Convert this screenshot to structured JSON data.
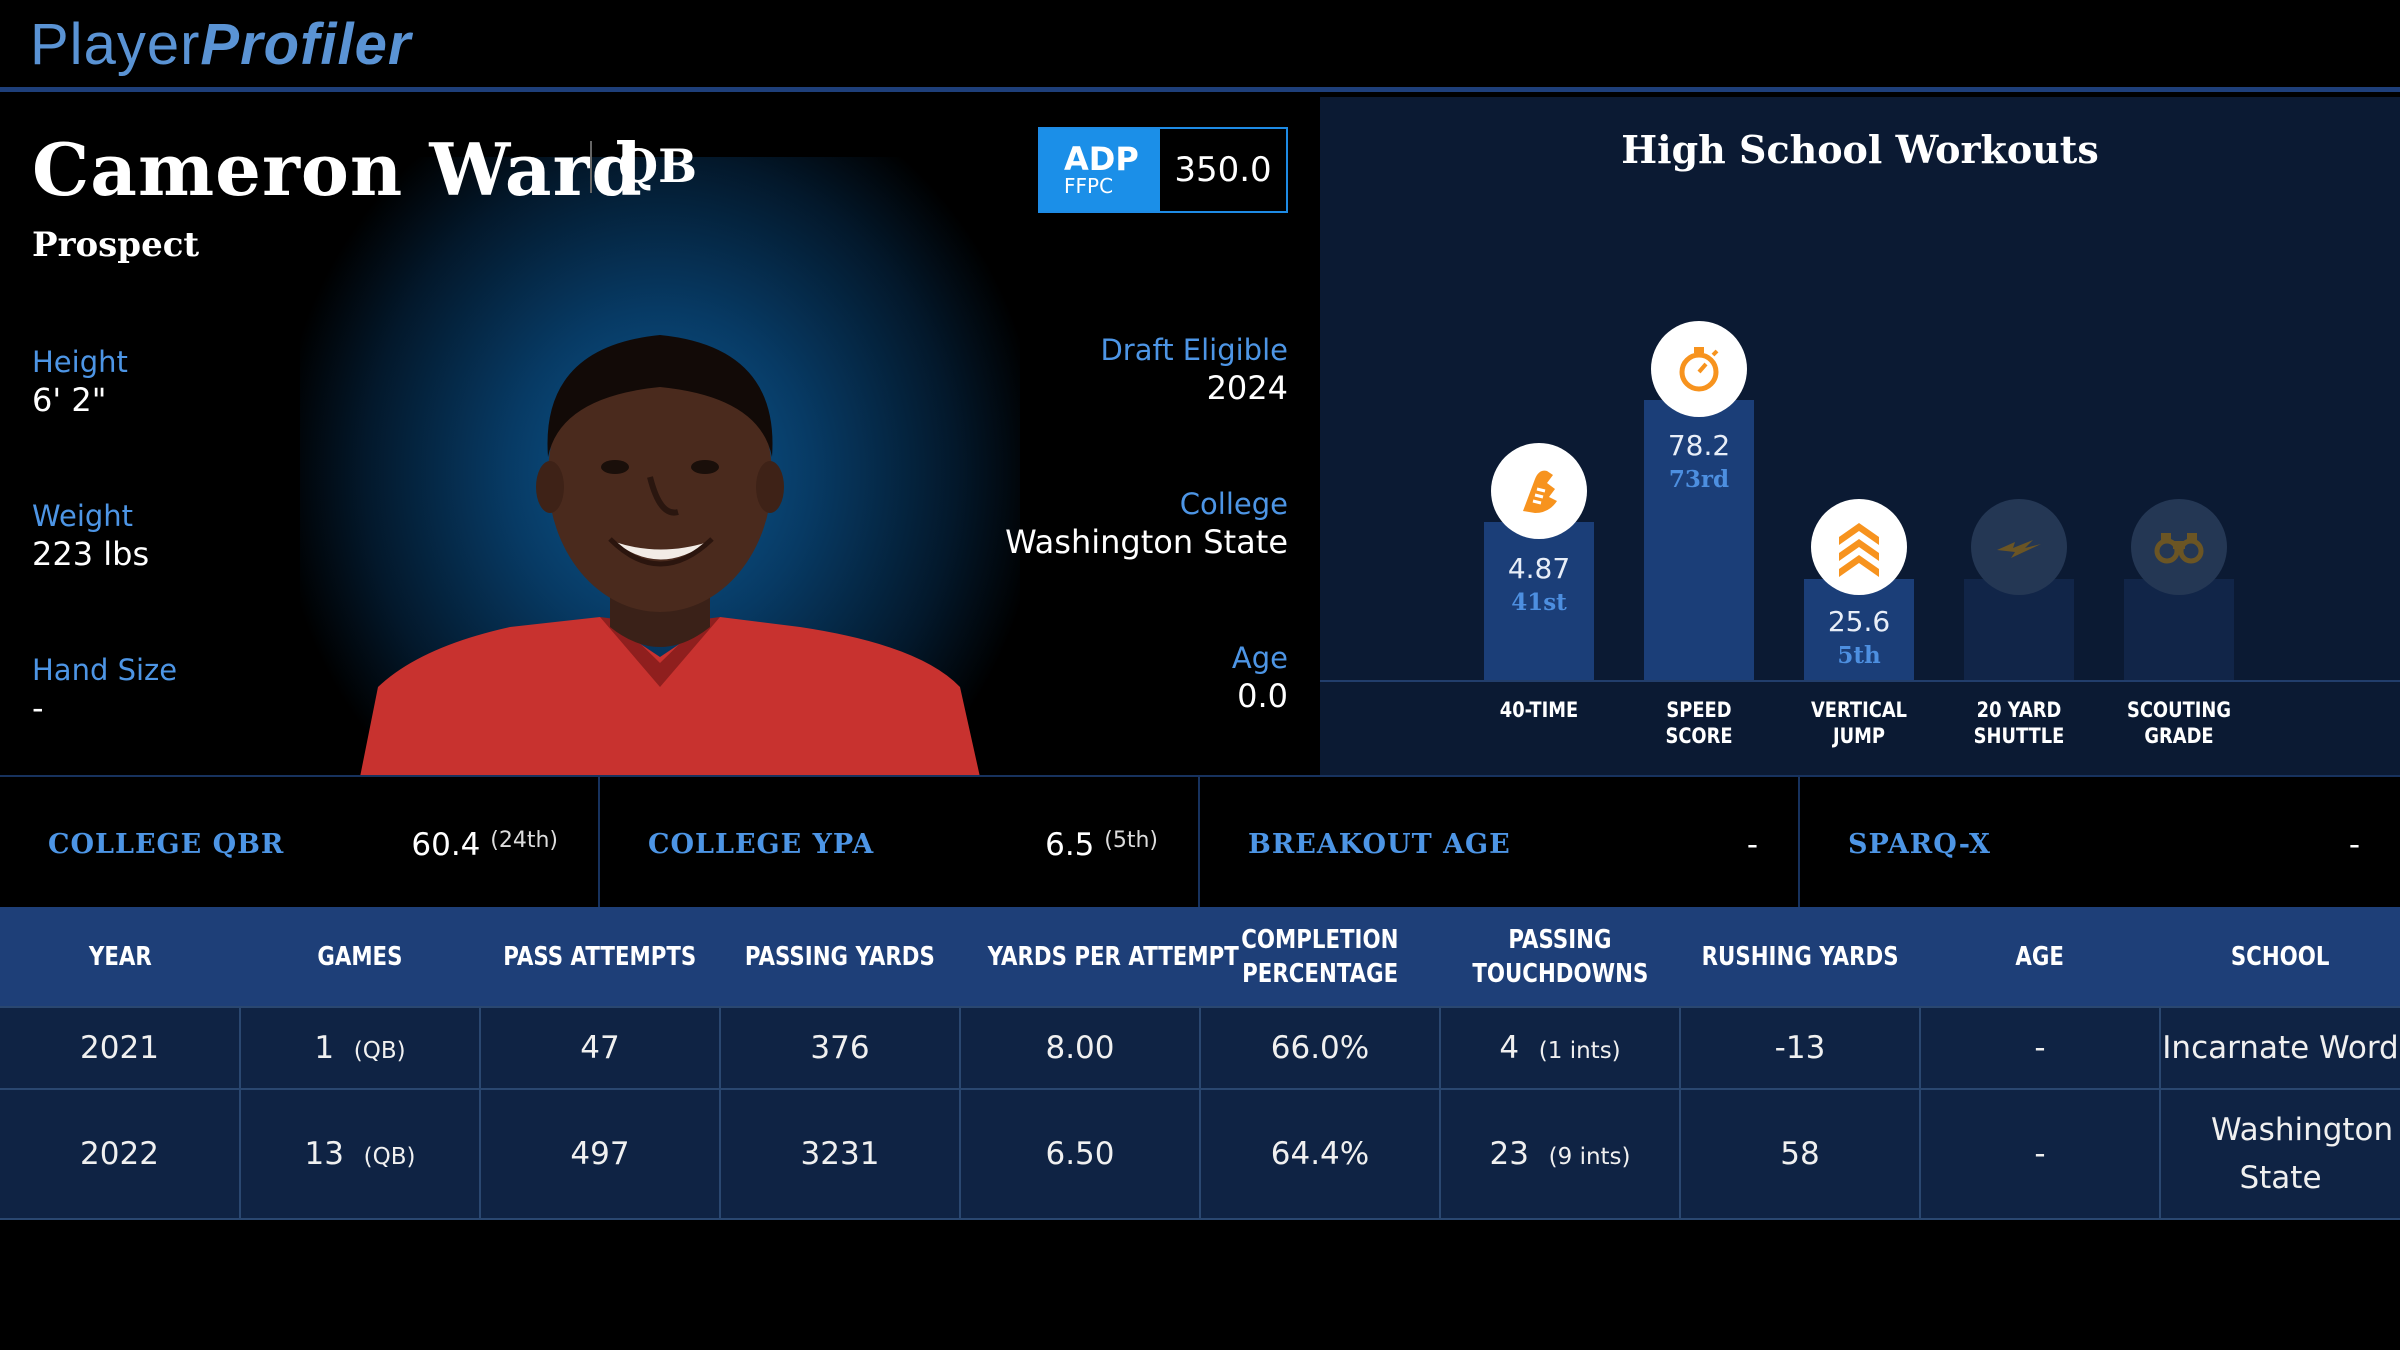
{
  "logo": {
    "part1": "Player",
    "part2": "Profiler"
  },
  "player": {
    "name": "Cameron Ward",
    "position": "QB",
    "status": "Prospect"
  },
  "adp": {
    "label": "ADP",
    "sublabel": "FFPC",
    "value": "350.0"
  },
  "left_stats": [
    {
      "label": "Height",
      "value": "6' 2\""
    },
    {
      "label": "Weight",
      "value": "223 lbs"
    },
    {
      "label": "Hand Size",
      "value": "-"
    }
  ],
  "right_stats": [
    {
      "label": "Draft Eligible",
      "value": "2024"
    },
    {
      "label": "College",
      "value": "Washington State"
    },
    {
      "label": "Age",
      "value": "0.0"
    }
  ],
  "workouts": {
    "title": "High School Workouts",
    "items": [
      {
        "label_line1": "40-TIME",
        "label_line2": "",
        "value": "4.87",
        "rank": "41st",
        "icon": "running-shoe-icon",
        "percentile": 41
      },
      {
        "label_line1": "SPEED",
        "label_line2": "SCORE",
        "value": "78.2",
        "rank": "73rd",
        "icon": "stopwatch-icon",
        "percentile": 73
      },
      {
        "label_line1": "VERTICAL",
        "label_line2": "JUMP",
        "value": "25.6",
        "rank": "5th",
        "icon": "chevrons-up-icon",
        "percentile": 5
      },
      {
        "label_line1": "20 YARD",
        "label_line2": "SHUTTLE",
        "value": "",
        "rank": "",
        "icon": "lightning-icon",
        "percentile": null
      },
      {
        "label_line1": "SCOUTING",
        "label_line2": "GRADE",
        "value": "",
        "rank": "",
        "icon": "binoculars-icon",
        "percentile": null
      }
    ]
  },
  "metrics": [
    {
      "label": "COLLEGE QBR",
      "value": "60.4",
      "rank": "(24th)"
    },
    {
      "label": "COLLEGE YPA",
      "value": "6.5",
      "rank": "(5th)"
    },
    {
      "label": "BREAKOUT AGE",
      "value": "-",
      "rank": ""
    },
    {
      "label": "SPARQ-X",
      "value": "-",
      "rank": ""
    }
  ],
  "table": {
    "headers": [
      "YEAR",
      "GAMES",
      "PASS ATTEMPTS",
      "PASSING YARDS",
      "YARDS PER ATTEMPT",
      "COMPLETION|PERCENTAGE",
      "PASSING|TOUCHDOWNS",
      "RUSHING YARDS",
      "AGE",
      "SCHOOL"
    ],
    "rows": [
      {
        "year": "2021",
        "games": "1",
        "games_pos": "(QB)",
        "attempts": "47",
        "yards": "376",
        "ypa": "8.00",
        "comp_pct": "66.0%",
        "td": "4",
        "ints": "(1 ints)",
        "rush": "-13",
        "age": "-",
        "school": "Incarnate Word"
      },
      {
        "year": "2022",
        "games": "13",
        "games_pos": "(QB)",
        "attempts": "497",
        "yards": "3231",
        "ypa": "6.50",
        "comp_pct": "64.4%",
        "td": "23",
        "ints": "(9 ints)",
        "rush": "58",
        "age": "-",
        "school": "Washington State"
      }
    ]
  },
  "colors": {
    "accent_blue": "#4d95e5",
    "header_navy": "#1e3f78",
    "adp_blue": "#1b8fe8",
    "icon_orange": "#f7931e"
  }
}
